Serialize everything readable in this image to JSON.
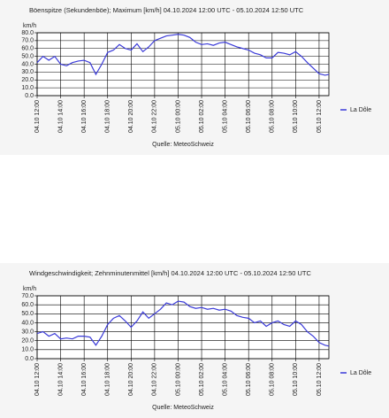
{
  "chart_data": [
    {
      "type": "line",
      "title": "Böenspitze (Sekundenböe); Maximum [km/h]  04.10.2024 12:00 UTC - 05.10.2024 12:50 UTC",
      "y_label": "km/h",
      "source": "Quelle: MeteoSchweiz",
      "x": [
        "04.10 12:00",
        "04.10 12:30",
        "04.10 13:00",
        "04.10 13:30",
        "04.10 14:00",
        "04.10 14:30",
        "04.10 15:00",
        "04.10 15:30",
        "04.10 16:00",
        "04.10 16:30",
        "04.10 17:00",
        "04.10 17:30",
        "04.10 18:00",
        "04.10 18:30",
        "04.10 19:00",
        "04.10 19:30",
        "04.10 20:00",
        "04.10 20:30",
        "04.10 21:00",
        "04.10 21:30",
        "04.10 22:00",
        "04.10 22:30",
        "04.10 23:00",
        "04.10 23:30",
        "05.10 00:00",
        "05.10 00:30",
        "05.10 01:00",
        "05.10 01:30",
        "05.10 02:00",
        "05.10 02:30",
        "05.10 03:00",
        "05.10 03:30",
        "05.10 04:00",
        "05.10 04:30",
        "05.10 05:00",
        "05.10 05:30",
        "05.10 06:00",
        "05.10 06:30",
        "05.10 07:00",
        "05.10 07:30",
        "05.10 08:00",
        "05.10 08:30",
        "05.10 09:00",
        "05.10 09:30",
        "05.10 10:00",
        "05.10 10:30",
        "05.10 11:00",
        "05.10 11:30",
        "05.10 12:00",
        "05.10 12:30",
        "05.10 12:50"
      ],
      "series": [
        {
          "name": "La Dôle",
          "color": "#3a3ad8",
          "values": [
            42,
            50,
            45,
            50,
            40,
            38,
            42,
            44,
            45,
            42,
            27,
            40,
            55,
            58,
            65,
            60,
            58,
            66,
            56,
            62,
            70,
            73,
            76,
            77,
            78,
            77,
            74,
            68,
            65,
            66,
            64,
            67,
            68,
            65,
            62,
            60,
            58,
            54,
            52,
            48,
            48,
            55,
            54,
            52,
            56,
            50,
            42,
            35,
            28,
            26,
            27
          ]
        }
      ],
      "xlim": [
        "04.10 12:00",
        "05.10 12:50"
      ],
      "xticks": [
        "04.10 12:00",
        "04.10 14:00",
        "04.10 16:00",
        "04.10 18:00",
        "04.10 20:00",
        "04.10 22:00",
        "05.10 00:00",
        "05.10 02:00",
        "05.10 04:00",
        "05.10 06:00",
        "05.10 08:00",
        "05.10 10:00",
        "05.10 12:00"
      ],
      "ylim": [
        0,
        80
      ],
      "yticks": [
        {
          "value": 0,
          "label": "0.0"
        },
        {
          "value": 10,
          "label": "10.0"
        },
        {
          "value": 20,
          "label": "20.0"
        },
        {
          "value": 30,
          "label": "30.0"
        },
        {
          "value": 40,
          "label": "40.0"
        },
        {
          "value": 50,
          "label": "50.0"
        },
        {
          "value": 60,
          "label": "60.0"
        },
        {
          "value": 70,
          "label": "70.0"
        },
        {
          "value": 80,
          "label": "80.0"
        }
      ],
      "grid": true
    },
    {
      "type": "line",
      "title": "Windgeschwindigkeit; Zehnminutenmittel [km/h]  04.10.2024 12:00 UTC - 05.10.2024 12:50 UTC",
      "y_label": "km/h",
      "source": "Quelle: MeteoSchweiz",
      "x": [
        "04.10 12:00",
        "04.10 12:30",
        "04.10 13:00",
        "04.10 13:30",
        "04.10 14:00",
        "04.10 14:30",
        "04.10 15:00",
        "04.10 15:30",
        "04.10 16:00",
        "04.10 16:30",
        "04.10 17:00",
        "04.10 17:30",
        "04.10 18:00",
        "04.10 18:30",
        "04.10 19:00",
        "04.10 19:30",
        "04.10 20:00",
        "04.10 20:30",
        "04.10 21:00",
        "04.10 21:30",
        "04.10 22:00",
        "04.10 22:30",
        "04.10 23:00",
        "04.10 23:30",
        "05.10 00:00",
        "05.10 00:30",
        "05.10 01:00",
        "05.10 01:30",
        "05.10 02:00",
        "05.10 02:30",
        "05.10 03:00",
        "05.10 03:30",
        "05.10 04:00",
        "05.10 04:30",
        "05.10 05:00",
        "05.10 05:30",
        "05.10 06:00",
        "05.10 06:30",
        "05.10 07:00",
        "05.10 07:30",
        "05.10 08:00",
        "05.10 08:30",
        "05.10 09:00",
        "05.10 09:30",
        "05.10 10:00",
        "05.10 10:30",
        "05.10 11:00",
        "05.10 11:30",
        "05.10 12:00",
        "05.10 12:30",
        "05.10 12:50"
      ],
      "series": [
        {
          "name": "La Dôle",
          "color": "#3a3ad8",
          "values": [
            28,
            30,
            25,
            28,
            22,
            23,
            22,
            25,
            25,
            24,
            15,
            25,
            38,
            45,
            48,
            42,
            35,
            42,
            52,
            45,
            50,
            55,
            62,
            60,
            64,
            63,
            58,
            56,
            57,
            55,
            56,
            54,
            55,
            53,
            48,
            46,
            45,
            40,
            42,
            36,
            40,
            42,
            38,
            36,
            42,
            38,
            30,
            25,
            18,
            15,
            14
          ]
        }
      ],
      "xlim": [
        "04.10 12:00",
        "05.10 12:50"
      ],
      "xticks": [
        "04.10 12:00",
        "04.10 14:00",
        "04.10 16:00",
        "04.10 18:00",
        "04.10 20:00",
        "04.10 22:00",
        "05.10 00:00",
        "05.10 02:00",
        "05.10 04:00",
        "05.10 06:00",
        "05.10 08:00",
        "05.10 10:00",
        "05.10 12:00"
      ],
      "ylim": [
        0,
        70
      ],
      "yticks": [
        {
          "value": 0,
          "label": "0.0"
        },
        {
          "value": 10,
          "label": "10.0"
        },
        {
          "value": 20,
          "label": "20.0"
        },
        {
          "value": 30,
          "label": "30.0"
        },
        {
          "value": 40,
          "label": "40.0"
        },
        {
          "value": 50,
          "label": "50.0"
        },
        {
          "value": 60,
          "label": "60.0"
        },
        {
          "value": 70,
          "label": "70.0"
        }
      ],
      "grid": true
    }
  ]
}
